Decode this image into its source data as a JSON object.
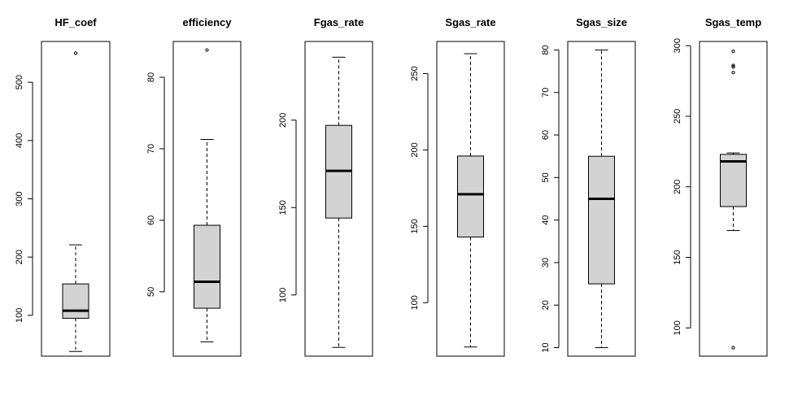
{
  "chart_data": [
    {
      "type": "boxplot",
      "title": "HF_coef",
      "ylim": [
        30,
        570
      ],
      "yticks": [
        100,
        200,
        300,
        400,
        500
      ],
      "whisker_low": 38,
      "q1": 95,
      "median": 108,
      "q3": 154,
      "whisker_high": 221,
      "outliers": [
        550
      ]
    },
    {
      "type": "boxplot",
      "title": "efficiency",
      "ylim": [
        41,
        85
      ],
      "yticks": [
        50,
        60,
        70,
        80
      ],
      "whisker_low": 43,
      "q1": 47.7,
      "median": 51.4,
      "q3": 59.3,
      "whisker_high": 71.3,
      "outliers": [
        83.8
      ]
    },
    {
      "type": "boxplot",
      "title": "Fgas_rate",
      "ylim": [
        65,
        245
      ],
      "yticks": [
        100,
        150,
        200
      ],
      "whisker_low": 70,
      "q1": 144,
      "median": 171,
      "q3": 197,
      "whisker_high": 236,
      "outliers": []
    },
    {
      "type": "boxplot",
      "title": "Sgas_rate",
      "ylim": [
        65,
        271
      ],
      "yticks": [
        100,
        150,
        200,
        250
      ],
      "whisker_low": 71,
      "q1": 143,
      "median": 171,
      "q3": 196,
      "whisker_high": 263,
      "outliers": []
    },
    {
      "type": "boxplot",
      "title": "Sgas_size",
      "ylim": [
        8,
        82
      ],
      "yticks": [
        10,
        20,
        30,
        40,
        50,
        60,
        70,
        80
      ],
      "whisker_low": 10,
      "q1": 25,
      "median": 45,
      "q3": 55,
      "whisker_high": 80,
      "outliers": []
    },
    {
      "type": "boxplot",
      "title": "Sgas_temp",
      "ylim": [
        80,
        303
      ],
      "yticks": [
        100,
        150,
        200,
        250,
        300
      ],
      "whisker_low": 169,
      "q1": 186,
      "median": 218,
      "q3": 223,
      "whisker_high": 224,
      "outliers": [
        86,
        281,
        285,
        286,
        296
      ]
    }
  ]
}
